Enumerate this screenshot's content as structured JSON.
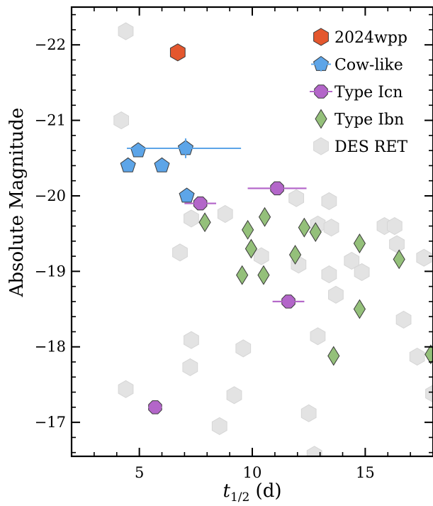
{
  "chart_data": {
    "type": "scatter",
    "xlabel_main": "t",
    "xlabel_sub": "1/2",
    "xlabel_unit": " (d)",
    "ylabel": "Absolute Magnitude",
    "xlim": [
      2,
      18
    ],
    "ylim": [
      -16.55,
      -22.5
    ],
    "y_inverted": true,
    "x_ticks": [
      5,
      10,
      15
    ],
    "y_ticks": [
      -17,
      -18,
      -19,
      -20,
      -21,
      -22
    ],
    "x_tick_labels": [
      "5",
      "10",
      "15"
    ],
    "y_tick_labels": [
      "−17",
      "−18",
      "−19",
      "−20",
      "−21",
      "−22"
    ],
    "grid": false,
    "legend_position": "top-right",
    "series": [
      {
        "name": "2024wpp",
        "marker": "hexagon",
        "color": "#e4572e",
        "points": [
          {
            "x": 6.7,
            "y": -21.9
          }
        ]
      },
      {
        "name": "Cow-like",
        "marker": "pentagon",
        "color": "#5da5e8",
        "points": [
          {
            "x": 4.95,
            "y": -20.6
          },
          {
            "x": 7.05,
            "y": -20.63,
            "xerr": [
              2.6,
              2.45
            ],
            "yerr": [
              0.13,
              0.13
            ]
          },
          {
            "x": 4.5,
            "y": -20.4
          },
          {
            "x": 6.0,
            "y": -20.4
          },
          {
            "x": 7.1,
            "y": -20.0
          }
        ]
      },
      {
        "name": "Type Icn",
        "marker": "octagon",
        "color": "#b366c9",
        "points": [
          {
            "x": 7.7,
            "y": -19.9,
            "xerr": [
              0.7,
              0.7
            ]
          },
          {
            "x": 11.1,
            "y": -20.1,
            "xerr": [
              1.3,
              1.3
            ]
          },
          {
            "x": 11.6,
            "y": -18.6,
            "xerr": [
              0.7,
              0.7
            ]
          },
          {
            "x": 5.7,
            "y": -17.2,
            "xerr": [
              0.3,
              0.3
            ]
          }
        ]
      },
      {
        "name": "Type Ibn",
        "marker": "diamond",
        "color": "#94c07a",
        "points": [
          {
            "x": 7.9,
            "y": -19.65
          },
          {
            "x": 9.8,
            "y": -19.55
          },
          {
            "x": 10.55,
            "y": -19.72
          },
          {
            "x": 9.95,
            "y": -19.3
          },
          {
            "x": 9.55,
            "y": -18.95
          },
          {
            "x": 10.5,
            "y": -18.95
          },
          {
            "x": 11.9,
            "y": -19.22
          },
          {
            "x": 12.3,
            "y": -19.58
          },
          {
            "x": 12.8,
            "y": -19.52
          },
          {
            "x": 13.6,
            "y": -17.88
          },
          {
            "x": 14.75,
            "y": -19.37
          },
          {
            "x": 14.75,
            "y": -18.5
          },
          {
            "x": 16.5,
            "y": -19.16
          },
          {
            "x": 17.9,
            "y": -17.9
          }
        ]
      },
      {
        "name": "DES RET",
        "marker": "hexagon",
        "color": "#e3e3e3",
        "points": [
          {
            "x": 4.4,
            "y": -22.18
          },
          {
            "x": 4.2,
            "y": -21.0
          },
          {
            "x": 7.3,
            "y": -19.7
          },
          {
            "x": 6.8,
            "y": -19.25
          },
          {
            "x": 8.8,
            "y": -19.76
          },
          {
            "x": 10.4,
            "y": -19.2
          },
          {
            "x": 11.95,
            "y": -19.97
          },
          {
            "x": 12.05,
            "y": -19.09
          },
          {
            "x": 12.9,
            "y": -19.62
          },
          {
            "x": 13.4,
            "y": -19.93
          },
          {
            "x": 13.5,
            "y": -19.58
          },
          {
            "x": 13.4,
            "y": -18.96
          },
          {
            "x": 13.7,
            "y": -18.69
          },
          {
            "x": 14.4,
            "y": -19.14
          },
          {
            "x": 14.85,
            "y": -18.99
          },
          {
            "x": 15.85,
            "y": -19.6
          },
          {
            "x": 16.3,
            "y": -19.6
          },
          {
            "x": 16.4,
            "y": -19.36
          },
          {
            "x": 16.7,
            "y": -18.36
          },
          {
            "x": 17.3,
            "y": -17.87
          },
          {
            "x": 17.6,
            "y": -19.18
          },
          {
            "x": 18.0,
            "y": -17.38
          },
          {
            "x": 7.3,
            "y": -18.09
          },
          {
            "x": 7.25,
            "y": -17.73
          },
          {
            "x": 9.6,
            "y": -17.98
          },
          {
            "x": 12.9,
            "y": -18.14
          },
          {
            "x": 4.4,
            "y": -17.44
          },
          {
            "x": 9.2,
            "y": -17.36
          },
          {
            "x": 8.55,
            "y": -16.95
          },
          {
            "x": 12.5,
            "y": -17.12
          },
          {
            "x": 12.75,
            "y": -16.57
          }
        ]
      }
    ]
  }
}
